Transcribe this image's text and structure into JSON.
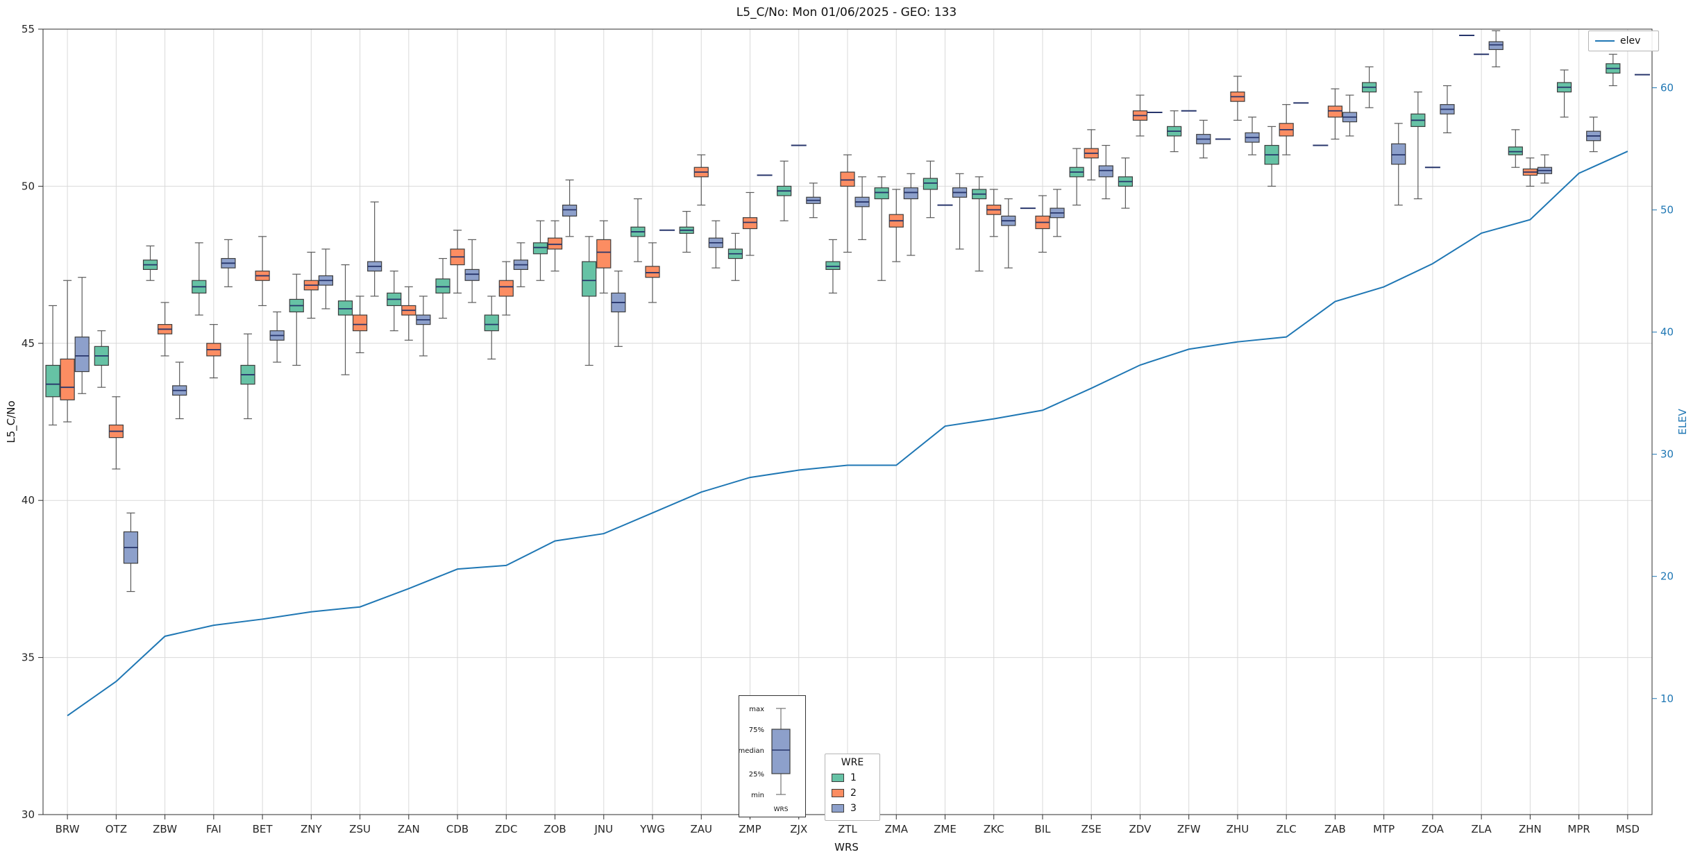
{
  "chart_data": {
    "type": "boxplot",
    "overlay": "line",
    "title": "L5_C/No: Mon 01/06/2025 - GEO: 133",
    "xlabel": "WRS",
    "ylabel": "L5_C/No",
    "y2label": "ELEV",
    "ylim": [
      30,
      55
    ],
    "y2lim": [
      0.5,
      64.8
    ],
    "yticks": [
      30,
      35,
      40,
      45,
      50,
      55
    ],
    "y2ticks": [
      10,
      20,
      30,
      40,
      50,
      60
    ],
    "grid": true,
    "legend_position": "bottom-center",
    "categories": [
      "BRW",
      "OTZ",
      "ZBW",
      "FAI",
      "BET",
      "ZNY",
      "ZSU",
      "ZAN",
      "CDB",
      "ZDC",
      "ZOB",
      "JNU",
      "YWG",
      "ZAU",
      "ZMP",
      "ZJX",
      "ZTL",
      "ZMA",
      "ZME",
      "ZKC",
      "BIL",
      "ZSE",
      "ZDV",
      "ZFW",
      "ZHU",
      "ZLC",
      "ZAB",
      "MTP",
      "ZOA",
      "ZLA",
      "ZHN",
      "MPR",
      "MSD"
    ],
    "hue_legend": {
      "title": "WRE",
      "entries": [
        {
          "label": "1",
          "color": "#66c2a5"
        },
        {
          "label": "2",
          "color": "#fc8d62"
        },
        {
          "label": "3",
          "color": "#8da0cb"
        }
      ]
    },
    "line_legend": {
      "label": "elev",
      "color": "#1f77b4"
    },
    "elev": [
      8.6,
      11.4,
      15.1,
      16.0,
      16.5,
      17.1,
      17.5,
      19.0,
      20.6,
      20.9,
      22.9,
      23.5,
      25.2,
      26.9,
      28.1,
      28.7,
      29.1,
      29.1,
      32.3,
      32.9,
      33.6,
      35.4,
      37.3,
      38.6,
      39.2,
      39.6,
      42.5,
      43.7,
      45.6,
      48.1,
      49.2,
      53.0,
      54.8
    ],
    "box_fields": [
      "category",
      "wre",
      "min",
      "q1",
      "median",
      "q3",
      "max"
    ],
    "boxes": [
      [
        "BRW",
        1,
        42.4,
        43.3,
        43.7,
        44.3,
        46.2
      ],
      [
        "BRW",
        2,
        42.5,
        43.2,
        43.6,
        44.5,
        47.0
      ],
      [
        "BRW",
        3,
        43.4,
        44.1,
        44.6,
        45.2,
        47.1
      ],
      [
        "OTZ",
        1,
        43.6,
        44.3,
        44.6,
        44.9,
        45.4
      ],
      [
        "OTZ",
        2,
        41.0,
        42.0,
        42.2,
        42.4,
        43.3
      ],
      [
        "OTZ",
        3,
        37.1,
        38.0,
        38.5,
        39.0,
        39.6
      ],
      [
        "ZBW",
        1,
        47.0,
        47.35,
        47.5,
        47.65,
        48.1
      ],
      [
        "ZBW",
        2,
        44.6,
        45.3,
        45.45,
        45.6,
        46.3
      ],
      [
        "ZBW",
        3,
        42.6,
        43.35,
        43.5,
        43.65,
        44.4
      ],
      [
        "FAI",
        1,
        45.9,
        46.6,
        46.8,
        47.0,
        48.2
      ],
      [
        "FAI",
        2,
        43.9,
        44.6,
        44.8,
        45.0,
        45.6
      ],
      [
        "FAI",
        3,
        46.8,
        47.4,
        47.55,
        47.7,
        48.3
      ],
      [
        "BET",
        1,
        42.6,
        43.7,
        44.0,
        44.3,
        45.3
      ],
      [
        "BET",
        2,
        46.2,
        47.0,
        47.15,
        47.3,
        48.4
      ],
      [
        "BET",
        3,
        44.4,
        45.1,
        45.25,
        45.4,
        46.0
      ],
      [
        "ZNY",
        1,
        44.3,
        46.0,
        46.2,
        46.4,
        47.2
      ],
      [
        "ZNY",
        2,
        45.8,
        46.7,
        46.85,
        47.0,
        47.9
      ],
      [
        "ZNY",
        3,
        46.1,
        46.85,
        47.0,
        47.15,
        48.0
      ],
      [
        "ZSU",
        1,
        44.0,
        45.9,
        46.1,
        46.35,
        47.5
      ],
      [
        "ZSU",
        2,
        44.7,
        45.4,
        45.6,
        45.9,
        46.5
      ],
      [
        "ZSU",
        3,
        46.5,
        47.3,
        47.45,
        47.6,
        49.5
      ],
      [
        "ZAN",
        1,
        45.4,
        46.2,
        46.4,
        46.6,
        47.3
      ],
      [
        "ZAN",
        2,
        45.1,
        45.9,
        46.05,
        46.2,
        46.8
      ],
      [
        "ZAN",
        3,
        44.6,
        45.6,
        45.75,
        45.9,
        46.5
      ],
      [
        "CDB",
        1,
        45.8,
        46.6,
        46.8,
        47.05,
        47.7
      ],
      [
        "CDB",
        2,
        46.6,
        47.5,
        47.75,
        48.0,
        48.6
      ],
      [
        "CDB",
        3,
        46.3,
        47.0,
        47.2,
        47.35,
        48.3
      ],
      [
        "ZDC",
        1,
        44.5,
        45.4,
        45.6,
        45.9,
        46.5
      ],
      [
        "ZDC",
        2,
        45.9,
        46.5,
        46.8,
        47.0,
        47.6
      ],
      [
        "ZDC",
        3,
        46.8,
        47.35,
        47.5,
        47.65,
        48.2
      ],
      [
        "ZOB",
        1,
        47.0,
        47.85,
        48.05,
        48.2,
        48.9
      ],
      [
        "ZOB",
        2,
        47.3,
        48.0,
        48.15,
        48.35,
        48.9
      ],
      [
        "ZOB",
        3,
        48.4,
        49.05,
        49.25,
        49.4,
        50.2
      ],
      [
        "JNU",
        1,
        44.3,
        46.5,
        47.0,
        47.6,
        48.4
      ],
      [
        "JNU",
        2,
        46.6,
        47.4,
        47.9,
        48.3,
        48.9
      ],
      [
        "JNU",
        3,
        44.9,
        46.0,
        46.3,
        46.6,
        47.3
      ],
      [
        "YWG",
        1,
        47.6,
        48.4,
        48.55,
        48.7,
        49.6
      ],
      [
        "YWG",
        2,
        46.3,
        47.1,
        47.25,
        47.45,
        48.2
      ],
      [
        "YWG",
        3,
        48.6,
        48.6,
        48.6,
        48.6,
        48.6
      ],
      [
        "ZAU",
        1,
        47.9,
        48.5,
        48.6,
        48.7,
        49.2
      ],
      [
        "ZAU",
        2,
        49.4,
        50.3,
        50.45,
        50.6,
        51.0
      ],
      [
        "ZAU",
        3,
        47.4,
        48.05,
        48.2,
        48.35,
        48.9
      ],
      [
        "ZMP",
        1,
        47.0,
        47.7,
        47.85,
        48.0,
        48.5
      ],
      [
        "ZMP",
        2,
        47.8,
        48.65,
        48.85,
        49.0,
        49.8
      ],
      [
        "ZMP",
        3,
        50.35,
        50.35,
        50.35,
        50.35,
        50.35
      ],
      [
        "ZJX",
        1,
        48.9,
        49.7,
        49.85,
        50.0,
        50.8
      ],
      [
        "ZJX",
        2,
        51.3,
        51.3,
        51.3,
        51.3,
        51.3
      ],
      [
        "ZJX",
        3,
        49.0,
        49.45,
        49.55,
        49.65,
        50.1
      ],
      [
        "ZTL",
        1,
        46.6,
        47.35,
        47.45,
        47.6,
        48.3
      ],
      [
        "ZTL",
        2,
        47.9,
        50.0,
        50.2,
        50.45,
        51.0
      ],
      [
        "ZTL",
        3,
        48.3,
        49.35,
        49.5,
        49.65,
        50.3
      ],
      [
        "ZMA",
        1,
        47.0,
        49.6,
        49.8,
        49.95,
        50.3
      ],
      [
        "ZMA",
        2,
        47.6,
        48.7,
        48.9,
        49.1,
        49.9
      ],
      [
        "ZMA",
        3,
        47.8,
        49.6,
        49.8,
        49.95,
        50.4
      ],
      [
        "ZME",
        1,
        49.0,
        49.9,
        50.1,
        50.25,
        50.8
      ],
      [
        "ZME",
        2,
        49.4,
        49.4,
        49.4,
        49.4,
        49.4
      ],
      [
        "ZME",
        3,
        48.0,
        49.65,
        49.8,
        49.95,
        50.4
      ],
      [
        "ZKC",
        1,
        47.3,
        49.6,
        49.75,
        49.9,
        50.3
      ],
      [
        "ZKC",
        2,
        48.4,
        49.1,
        49.25,
        49.4,
        49.9
      ],
      [
        "ZKC",
        3,
        47.4,
        48.75,
        48.9,
        49.05,
        49.6
      ],
      [
        "BIL",
        1,
        49.3,
        49.3,
        49.3,
        49.3,
        49.3
      ],
      [
        "BIL",
        2,
        47.9,
        48.65,
        48.85,
        49.05,
        49.7
      ],
      [
        "BIL",
        3,
        48.4,
        49.0,
        49.15,
        49.3,
        49.9
      ],
      [
        "ZSE",
        1,
        49.4,
        50.3,
        50.45,
        50.6,
        51.2
      ],
      [
        "ZSE",
        2,
        50.2,
        50.9,
        51.05,
        51.2,
        51.8
      ],
      [
        "ZSE",
        3,
        49.6,
        50.3,
        50.5,
        50.65,
        51.3
      ],
      [
        "ZDV",
        1,
        49.3,
        50.0,
        50.15,
        50.3,
        50.9
      ],
      [
        "ZDV",
        2,
        51.6,
        52.1,
        52.25,
        52.4,
        52.9
      ],
      [
        "ZDV",
        3,
        52.35,
        52.35,
        52.35,
        52.35,
        52.35
      ],
      [
        "ZFW",
        1,
        51.1,
        51.6,
        51.75,
        51.9,
        52.4
      ],
      [
        "ZFW",
        2,
        52.4,
        52.4,
        52.4,
        52.4,
        52.4
      ],
      [
        "ZFW",
        3,
        50.9,
        51.35,
        51.5,
        51.65,
        52.1
      ],
      [
        "ZHU",
        1,
        51.5,
        51.5,
        51.5,
        51.5,
        51.5
      ],
      [
        "ZHU",
        2,
        52.1,
        52.7,
        52.85,
        53.0,
        53.5
      ],
      [
        "ZHU",
        3,
        51.0,
        51.4,
        51.55,
        51.7,
        52.2
      ],
      [
        "ZLC",
        1,
        50.0,
        50.7,
        51.0,
        51.3,
        51.9
      ],
      [
        "ZLC",
        2,
        51.0,
        51.6,
        51.8,
        52.0,
        52.6
      ],
      [
        "ZLC",
        3,
        52.65,
        52.65,
        52.65,
        52.65,
        52.65
      ],
      [
        "ZAB",
        1,
        51.3,
        51.3,
        51.3,
        51.3,
        51.3
      ],
      [
        "ZAB",
        2,
        51.5,
        52.2,
        52.4,
        52.55,
        53.1
      ],
      [
        "ZAB",
        3,
        51.6,
        52.05,
        52.2,
        52.35,
        52.9
      ],
      [
        "MTP",
        1,
        52.5,
        53.0,
        53.15,
        53.3,
        53.8
      ],
      [
        "MTP",
        3,
        49.4,
        50.7,
        51.0,
        51.35,
        52.0
      ],
      [
        "ZOA",
        1,
        49.6,
        51.9,
        52.1,
        52.3,
        53.0
      ],
      [
        "ZOA",
        2,
        50.6,
        50.6,
        50.6,
        50.6,
        50.6
      ],
      [
        "ZOA",
        3,
        51.7,
        52.3,
        52.45,
        52.6,
        53.2
      ],
      [
        "ZLA",
        1,
        54.8,
        54.8,
        54.8,
        54.8,
        54.8
      ],
      [
        "ZLA",
        2,
        54.2,
        54.2,
        54.2,
        54.2,
        54.2
      ],
      [
        "ZLA",
        3,
        53.8,
        54.35,
        54.5,
        54.6,
        54.95
      ],
      [
        "ZHN",
        1,
        50.6,
        51.0,
        51.1,
        51.25,
        51.8
      ],
      [
        "ZHN",
        2,
        50.0,
        50.35,
        50.45,
        50.55,
        50.9
      ],
      [
        "ZHN",
        3,
        50.1,
        50.4,
        50.5,
        50.6,
        51.0
      ],
      [
        "MPR",
        1,
        52.2,
        53.0,
        53.15,
        53.3,
        53.7
      ],
      [
        "MPR",
        3,
        51.1,
        51.45,
        51.6,
        51.75,
        52.2
      ],
      [
        "MSD",
        1,
        53.2,
        53.6,
        53.75,
        53.9,
        54.2
      ],
      [
        "MSD",
        3,
        53.55,
        53.55,
        53.55,
        53.55,
        53.55
      ]
    ],
    "colors": {
      "grid": "#d9d9d9",
      "frame": "#2e2e2e",
      "tick_label": "#262626",
      "whisker": "#5a5a5a",
      "box_edge": "#3c3c3c",
      "median": "#27356b",
      "single_value_dash": "#27356b"
    }
  },
  "inset": {
    "labels": [
      "max",
      "75%",
      "median",
      "25%",
      "min"
    ],
    "xlabel": "WRS",
    "box_color": "#8da0cb"
  }
}
